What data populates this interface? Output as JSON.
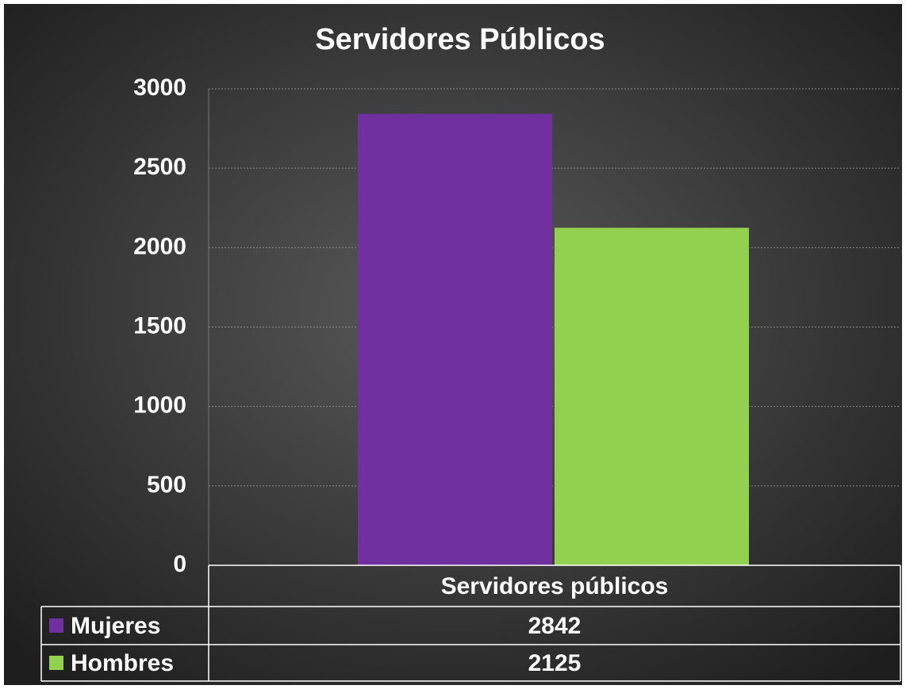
{
  "chart_data": {
    "type": "bar",
    "title": "Servidores Públicos",
    "categories": [
      "Servidores públicos"
    ],
    "series": [
      {
        "name": "Mujeres",
        "color": "#7030a0",
        "values": [
          2842
        ]
      },
      {
        "name": "Hombres",
        "color": "#92d050",
        "values": [
          2125
        ]
      }
    ],
    "ylim": [
      0,
      3000
    ],
    "yticks": [
      0,
      500,
      1000,
      1500,
      2000,
      2500,
      3000
    ],
    "grid": true
  }
}
